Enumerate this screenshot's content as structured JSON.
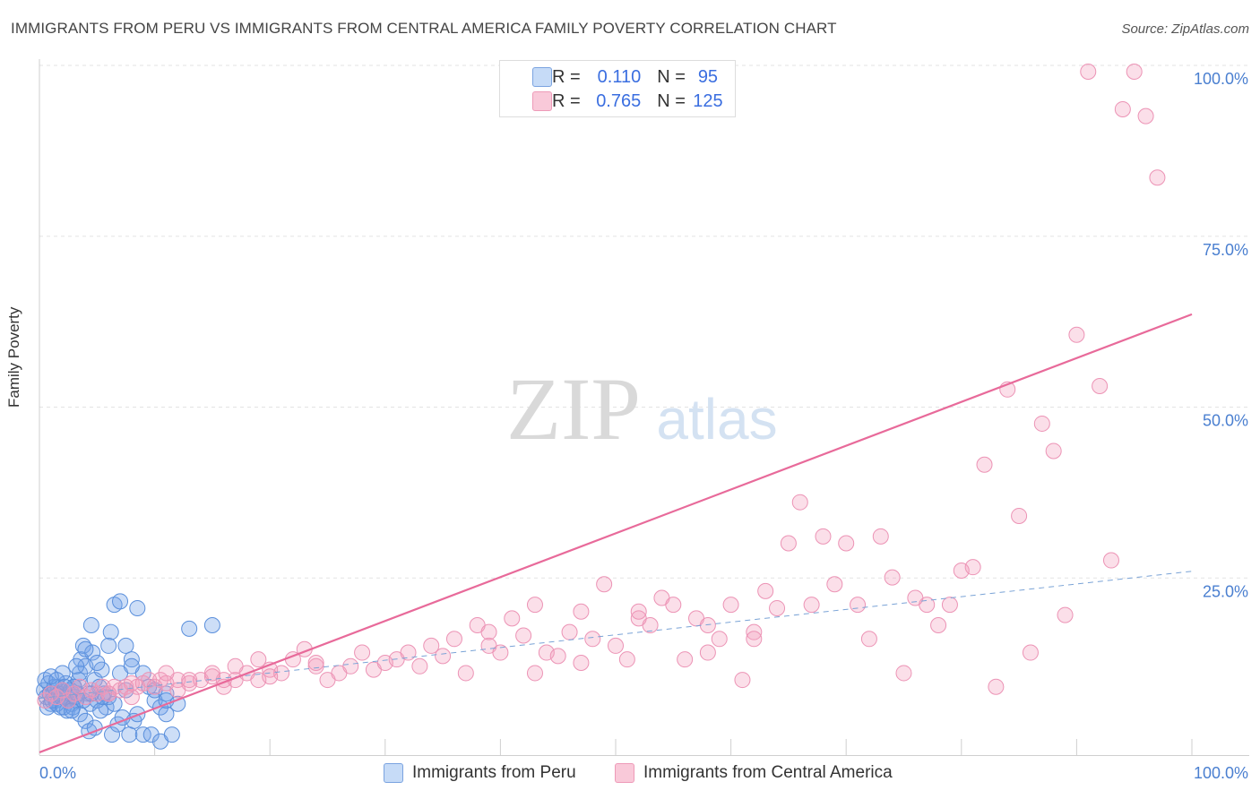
{
  "title": "IMMIGRANTS FROM PERU VS IMMIGRANTS FROM CENTRAL AMERICA FAMILY POVERTY CORRELATION CHART",
  "source": "Source: ZipAtlas.com",
  "watermark": {
    "zip": "ZIP",
    "atlas": "atlas"
  },
  "legend_top": {
    "rows": [
      {
        "r_label": "R =",
        "r_value": "0.110",
        "n_label": "N =",
        "n_value": "95"
      },
      {
        "r_label": "R =",
        "r_value": "0.765",
        "n_label": "N =",
        "n_value": "125"
      }
    ]
  },
  "legend_bottom": {
    "peru": "Immigrants from Peru",
    "central": "Immigrants from Central America"
  },
  "chart_data": {
    "type": "scatter",
    "title": "IMMIGRANTS FROM PERU VS IMMIGRANTS FROM CENTRAL AMERICA FAMILY POVERTY CORRELATION CHART",
    "xlabel": "",
    "ylabel": "Family Poverty",
    "xlim": [
      0,
      100
    ],
    "ylim": [
      0,
      100
    ],
    "x_tick_labels": [
      "0.0%",
      "100.0%"
    ],
    "y_ticks": [
      25,
      50,
      75,
      100
    ],
    "y_tick_labels": [
      "25.0%",
      "50.0%",
      "75.0%",
      "100.0%"
    ],
    "grid": true,
    "legend_position": "top-center",
    "colors": {
      "peru": "#6fa0e8",
      "central": "#f29bbb",
      "central_line": "#e86a9a",
      "peru_line": "#7aa3d6",
      "tick_label": "#4a7fd0"
    },
    "series": [
      {
        "name": "Immigrants from Peru",
        "R": 0.11,
        "N": 95,
        "trend": {
          "x": [
            0,
            100
          ],
          "y": [
            8.3,
            26.9
          ]
        },
        "points": [
          [
            0.4,
            9.5
          ],
          [
            0.6,
            8.5
          ],
          [
            0.8,
            10.5
          ],
          [
            1,
            7.5
          ],
          [
            1.2,
            9
          ],
          [
            1.4,
            8
          ],
          [
            1.6,
            10
          ],
          [
            1.8,
            7
          ],
          [
            2,
            9.5
          ],
          [
            2.2,
            8.5
          ],
          [
            2.4,
            6.5
          ],
          [
            2.6,
            9
          ],
          [
            2.8,
            7.5
          ],
          [
            3,
            10
          ],
          [
            3.2,
            8
          ],
          [
            3.4,
            11
          ],
          [
            0.5,
            11
          ],
          [
            0.7,
            7
          ],
          [
            0.9,
            9
          ],
          [
            1.1,
            8
          ],
          [
            1.3,
            10
          ],
          [
            1.5,
            7.5
          ],
          [
            1.7,
            9
          ],
          [
            1.9,
            8.5
          ],
          [
            2.1,
            7
          ],
          [
            2.3,
            10.5
          ],
          [
            2.5,
            8
          ],
          [
            2.7,
            9.5
          ],
          [
            2.9,
            7
          ],
          [
            3.1,
            8.5
          ],
          [
            3.3,
            9
          ],
          [
            3.5,
            12
          ],
          [
            3.6,
            14
          ],
          [
            3.8,
            16
          ],
          [
            4,
            13
          ],
          [
            4.2,
            9
          ],
          [
            4.4,
            7.5
          ],
          [
            4.6,
            15
          ],
          [
            4.8,
            11
          ],
          [
            5,
            8
          ],
          [
            5.2,
            10
          ],
          [
            5.4,
            12.5
          ],
          [
            5.6,
            9
          ],
          [
            5.8,
            7
          ],
          [
            6,
            8.5
          ],
          [
            6.2,
            18
          ],
          [
            4.5,
            19
          ],
          [
            6.5,
            22
          ],
          [
            7,
            22.5
          ],
          [
            7.5,
            16
          ],
          [
            8,
            14
          ],
          [
            8.5,
            21.5
          ],
          [
            9,
            12
          ],
          [
            9.5,
            10
          ],
          [
            10,
            8
          ],
          [
            10.5,
            7
          ],
          [
            11,
            6
          ],
          [
            3.5,
            6
          ],
          [
            4,
            5
          ],
          [
            4.3,
            3.5
          ],
          [
            4.8,
            4
          ],
          [
            5.3,
            6.5
          ],
          [
            6.3,
            3
          ],
          [
            6.8,
            4.5
          ],
          [
            7.2,
            5.5
          ],
          [
            7.8,
            3
          ],
          [
            8.2,
            5
          ],
          [
            9,
            3
          ],
          [
            9.7,
            3
          ],
          [
            10.5,
            2
          ],
          [
            11.5,
            3
          ],
          [
            3,
            10
          ],
          [
            2,
            12
          ],
          [
            1,
            11.5
          ],
          [
            7,
            12
          ],
          [
            8,
            13
          ],
          [
            6,
            16
          ],
          [
            5,
            13.5
          ],
          [
            4,
            15.5
          ],
          [
            3.2,
            13
          ],
          [
            5.5,
            8.5
          ],
          [
            6.5,
            7.5
          ],
          [
            7.5,
            9.5
          ],
          [
            2.8,
            6.5
          ],
          [
            1.5,
            11
          ],
          [
            2.2,
            10
          ],
          [
            3.8,
            8
          ],
          [
            4.5,
            9
          ],
          [
            10,
            9.5
          ],
          [
            11,
            9
          ],
          [
            13,
            18.5
          ],
          [
            15,
            19
          ],
          [
            11,
            8
          ],
          [
            12,
            7.5
          ],
          [
            8.5,
            6
          ]
        ]
      },
      {
        "name": "Immigrants from Central America",
        "R": 0.765,
        "N": 125,
        "trend": {
          "x": [
            0,
            100
          ],
          "y": [
            0.4,
            64.5
          ]
        },
        "points": [
          [
            0.5,
            8
          ],
          [
            1,
            9
          ],
          [
            1.5,
            8.5
          ],
          [
            2,
            9.5
          ],
          [
            2.5,
            8
          ],
          [
            3,
            9
          ],
          [
            3.5,
            10
          ],
          [
            4,
            8.5
          ],
          [
            4.5,
            9.5
          ],
          [
            5,
            9
          ],
          [
            5.5,
            10
          ],
          [
            6,
            9
          ],
          [
            6.5,
            10
          ],
          [
            7,
            9.5
          ],
          [
            7.5,
            10
          ],
          [
            8,
            10.5
          ],
          [
            8.5,
            10
          ],
          [
            9,
            10.5
          ],
          [
            9.5,
            11
          ],
          [
            10,
            10
          ],
          [
            10.5,
            11
          ],
          [
            11,
            10.5
          ],
          [
            12,
            11
          ],
          [
            13,
            10.5
          ],
          [
            14,
            11
          ],
          [
            15,
            11.5
          ],
          [
            16,
            10
          ],
          [
            17,
            11
          ],
          [
            18,
            12
          ],
          [
            19,
            11
          ],
          [
            20,
            12.5
          ],
          [
            21,
            12
          ],
          [
            22,
            14
          ],
          [
            23,
            15.5
          ],
          [
            24,
            13
          ],
          [
            25,
            11
          ],
          [
            26,
            12
          ],
          [
            27,
            13
          ],
          [
            28,
            15
          ],
          [
            29,
            12.5
          ],
          [
            30,
            13.5
          ],
          [
            31,
            14
          ],
          [
            32,
            15
          ],
          [
            33,
            13
          ],
          [
            34,
            16
          ],
          [
            35,
            14.5
          ],
          [
            36,
            17
          ],
          [
            37,
            12
          ],
          [
            38,
            19
          ],
          [
            39,
            16
          ],
          [
            40,
            15
          ],
          [
            41,
            20
          ],
          [
            42,
            17.5
          ],
          [
            43,
            22
          ],
          [
            44,
            15
          ],
          [
            45,
            14.5
          ],
          [
            46,
            18
          ],
          [
            47,
            21
          ],
          [
            48,
            17
          ],
          [
            49,
            25
          ],
          [
            50,
            16
          ],
          [
            51,
            14
          ],
          [
            52,
            20
          ],
          [
            53,
            19
          ],
          [
            54,
            23
          ],
          [
            55,
            22
          ],
          [
            56,
            14
          ],
          [
            57,
            20
          ],
          [
            58,
            19
          ],
          [
            59,
            17
          ],
          [
            60,
            22
          ],
          [
            61,
            11
          ],
          [
            62,
            18
          ],
          [
            63,
            24
          ],
          [
            64,
            21.5
          ],
          [
            65,
            31
          ],
          [
            66,
            37
          ],
          [
            67,
            22
          ],
          [
            68,
            32
          ],
          [
            69,
            25
          ],
          [
            70,
            31
          ],
          [
            71,
            22
          ],
          [
            72,
            17
          ],
          [
            73,
            32
          ],
          [
            74,
            26
          ],
          [
            75,
            12
          ],
          [
            76,
            23
          ],
          [
            77,
            22
          ],
          [
            78,
            19
          ],
          [
            79,
            22
          ],
          [
            80,
            27
          ],
          [
            81,
            27.5
          ],
          [
            82,
            42.5
          ],
          [
            83,
            10
          ],
          [
            84,
            53.5
          ],
          [
            85,
            35
          ],
          [
            86,
            15
          ],
          [
            87,
            48.5
          ],
          [
            88,
            44.5
          ],
          [
            89,
            20.5
          ],
          [
            90,
            61.5
          ],
          [
            91,
            100
          ],
          [
            92,
            54
          ],
          [
            93,
            28.5
          ],
          [
            94,
            94.5
          ],
          [
            95,
            100
          ],
          [
            96,
            93.5
          ],
          [
            97,
            84.5
          ],
          [
            39,
            18
          ],
          [
            43,
            12
          ],
          [
            47,
            13.5
          ],
          [
            52,
            21
          ],
          [
            58,
            15
          ],
          [
            62,
            17
          ],
          [
            24,
            13.5
          ],
          [
            20,
            11.5
          ],
          [
            16,
            11
          ],
          [
            12,
            9.5
          ],
          [
            8,
            8.5
          ],
          [
            6,
            9
          ],
          [
            11,
            12
          ],
          [
            13,
            11
          ],
          [
            15,
            12
          ],
          [
            17,
            13
          ],
          [
            19,
            14
          ]
        ]
      }
    ]
  }
}
